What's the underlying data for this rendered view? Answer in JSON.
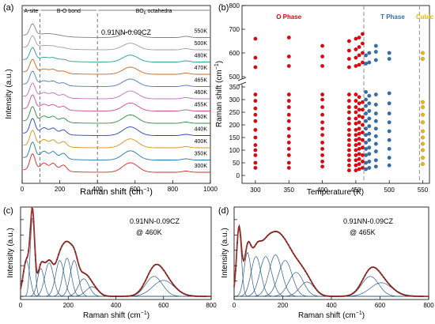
{
  "chart_data": [
    {
      "panel": "(a)",
      "type": "line",
      "xlabel": "Raman shift (cm",
      "xlabel_sup": "−1",
      "xlabel_tail": ")",
      "ylabel": "Intensity (a.u.)",
      "xlim": [
        0,
        1000
      ],
      "xticks": [
        "0",
        "200",
        "400",
        "600",
        "800",
        "1000"
      ],
      "sample": "0.91NN-0.09CZ",
      "regions": [
        {
          "label": "A-site",
          "from": 0,
          "to": 95
        },
        {
          "label": "B-O bond",
          "from": 95,
          "to": 400
        },
        {
          "label": "BO",
          "sub": "6",
          "tail": " octahedra",
          "from": 400,
          "to": 1000
        }
      ],
      "divider_x": [
        95,
        400
      ],
      "series": [
        {
          "name": "550K",
          "color": "#7f7f7f"
        },
        {
          "name": "500K",
          "color": "#9e9e9e"
        },
        {
          "name": "480K",
          "color": "#2a9d8f"
        },
        {
          "name": "470K",
          "color": "#c9661a"
        },
        {
          "name": "465K",
          "color": "#4a7dc0"
        },
        {
          "name": "460K",
          "color": "#bf6fc0"
        },
        {
          "name": "455K",
          "color": "#d44a8c"
        },
        {
          "name": "450K",
          "color": "#2f8f3a"
        },
        {
          "name": "440K",
          "color": "#2244bb"
        },
        {
          "name": "400K",
          "color": "#d6921c"
        },
        {
          "name": "350K",
          "color": "#1f77b4"
        },
        {
          "name": "300K",
          "color": "#d62728"
        }
      ]
    },
    {
      "panel": "(b)",
      "type": "scatter",
      "xlabel": "Temperature (K)",
      "ylabel": "Raman shift (cm",
      "ylabel_sup": "−1",
      "ylabel_tail": ")",
      "xlim": [
        280,
        560
      ],
      "xticks": [
        300,
        350,
        400,
        450,
        500,
        550
      ],
      "yticks_low": [
        0,
        50,
        100,
        150,
        200,
        250,
        300,
        350
      ],
      "yticks_high": [
        500,
        600,
        700,
        800
      ],
      "axis_break": true,
      "phase_boundaries": [
        462,
        545
      ],
      "phases": [
        {
          "label": "O Phase",
          "color": "#e8000b",
          "x": 350
        },
        {
          "label": "T Phase",
          "color": "#2f6fb0",
          "x": 505
        },
        {
          "label": "Cubic",
          "color": "#f2b600",
          "x": 553
        }
      ],
      "series": [
        {
          "name": "O",
          "color": "#e8000b",
          "points": [
            [
              300,
              30
            ],
            [
              300,
              50
            ],
            [
              300,
              80
            ],
            [
              300,
              100
            ],
            [
              300,
              120
            ],
            [
              300,
              150
            ],
            [
              300,
              180
            ],
            [
              300,
              215
            ],
            [
              300,
              240
            ],
            [
              300,
              265
            ],
            [
              300,
              295
            ],
            [
              300,
              320
            ],
            [
              300,
              540
            ],
            [
              300,
              580
            ],
            [
              300,
              660
            ],
            [
              350,
              30
            ],
            [
              350,
              50
            ],
            [
              350,
              80
            ],
            [
              350,
              105
            ],
            [
              350,
              130
            ],
            [
              350,
              155
            ],
            [
              350,
              185
            ],
            [
              350,
              215
            ],
            [
              350,
              240
            ],
            [
              350,
              270
            ],
            [
              350,
              295
            ],
            [
              350,
              320
            ],
            [
              350,
              545
            ],
            [
              350,
              585
            ],
            [
              350,
              665
            ],
            [
              400,
              35
            ],
            [
              400,
              55
            ],
            [
              400,
              80
            ],
            [
              400,
              105
            ],
            [
              400,
              130
            ],
            [
              400,
              160
            ],
            [
              400,
              185
            ],
            [
              400,
              210
            ],
            [
              400,
              240
            ],
            [
              400,
              270
            ],
            [
              400,
              300
            ],
            [
              400,
              320
            ],
            [
              400,
              545
            ],
            [
              400,
              585
            ],
            [
              400,
              630
            ],
            [
              440,
              20
            ],
            [
              440,
              40
            ],
            [
              440,
              60
            ],
            [
              440,
              80
            ],
            [
              440,
              100
            ],
            [
              440,
              120
            ],
            [
              440,
              140
            ],
            [
              440,
              160
            ],
            [
              440,
              180
            ],
            [
              440,
              205
            ],
            [
              440,
              225
            ],
            [
              440,
              250
            ],
            [
              440,
              270
            ],
            [
              440,
              295
            ],
            [
              440,
              320
            ],
            [
              440,
              540
            ],
            [
              440,
              575
            ],
            [
              440,
              610
            ],
            [
              440,
              650
            ],
            [
              450,
              20
            ],
            [
              450,
              40
            ],
            [
              450,
              60
            ],
            [
              450,
              80
            ],
            [
              450,
              100
            ],
            [
              450,
              120
            ],
            [
              450,
              140
            ],
            [
              450,
              160
            ],
            [
              450,
              180
            ],
            [
              450,
              205
            ],
            [
              450,
              225
            ],
            [
              450,
              250
            ],
            [
              450,
              270
            ],
            [
              450,
              295
            ],
            [
              450,
              320
            ],
            [
              450,
              545
            ],
            [
              450,
              580
            ],
            [
              450,
              615
            ],
            [
              450,
              660
            ],
            [
              455,
              25
            ],
            [
              455,
              45
            ],
            [
              455,
              65
            ],
            [
              455,
              85
            ],
            [
              455,
              105
            ],
            [
              455,
              125
            ],
            [
              455,
              145
            ],
            [
              455,
              165
            ],
            [
              455,
              185
            ],
            [
              455,
              210
            ],
            [
              455,
              235
            ],
            [
              455,
              260
            ],
            [
              455,
              285
            ],
            [
              455,
              310
            ],
            [
              455,
              550
            ],
            [
              455,
              590
            ],
            [
              455,
              625
            ],
            [
              455,
              665
            ],
            [
              460,
              30
            ],
            [
              460,
              55
            ],
            [
              460,
              80
            ],
            [
              460,
              110
            ],
            [
              460,
              140
            ],
            [
              460,
              170
            ],
            [
              460,
              200
            ],
            [
              460,
              230
            ],
            [
              460,
              260
            ],
            [
              460,
              290
            ],
            [
              460,
              560
            ],
            [
              460,
              600
            ],
            [
              460,
              640
            ],
            [
              460,
              680
            ]
          ]
        },
        {
          "name": "T",
          "color": "#2f6fb0",
          "points": [
            [
              465,
              25
            ],
            [
              465,
              50
            ],
            [
              465,
              80
            ],
            [
              465,
              105
            ],
            [
              465,
              130
            ],
            [
              465,
              160
            ],
            [
              465,
              185
            ],
            [
              465,
              215
            ],
            [
              465,
              245
            ],
            [
              465,
              275
            ],
            [
              465,
              300
            ],
            [
              465,
              330
            ],
            [
              465,
              555
            ],
            [
              465,
              590
            ],
            [
              470,
              30
            ],
            [
              470,
              55
            ],
            [
              470,
              85
            ],
            [
              470,
              110
            ],
            [
              470,
              140
            ],
            [
              470,
              165
            ],
            [
              470,
              195
            ],
            [
              470,
              225
            ],
            [
              470,
              255
            ],
            [
              470,
              285
            ],
            [
              470,
              315
            ],
            [
              470,
              560
            ],
            [
              470,
              600
            ],
            [
              480,
              35
            ],
            [
              480,
              60
            ],
            [
              480,
              95
            ],
            [
              480,
              125
            ],
            [
              480,
              155
            ],
            [
              480,
              185
            ],
            [
              480,
              215
            ],
            [
              480,
              245
            ],
            [
              480,
              280
            ],
            [
              480,
              320
            ],
            [
              480,
              570
            ],
            [
              480,
              605
            ],
            [
              480,
              630
            ],
            [
              500,
              40
            ],
            [
              500,
              70
            ],
            [
              500,
              105
            ],
            [
              500,
              140
            ],
            [
              500,
              175
            ],
            [
              500,
              210
            ],
            [
              500,
              245
            ],
            [
              500,
              285
            ],
            [
              500,
              325
            ],
            [
              500,
              575
            ],
            [
              500,
              600
            ]
          ]
        },
        {
          "name": "Cubic",
          "color": "#f2b600",
          "points": [
            [
              550,
              45
            ],
            [
              550,
              70
            ],
            [
              550,
              100
            ],
            [
              550,
              125
            ],
            [
              550,
              150
            ],
            [
              550,
              175
            ],
            [
              550,
              210
            ],
            [
              550,
              240
            ],
            [
              550,
              270
            ],
            [
              550,
              290
            ],
            [
              550,
              575
            ],
            [
              550,
              600
            ]
          ]
        }
      ]
    },
    {
      "panel": "(c)",
      "type": "line",
      "xlabel": "Raman shift (cm",
      "xlabel_sup": "−1",
      "xlabel_tail": ")",
      "ylabel": "Intensity (a.u.)",
      "xlim": [
        0,
        800
      ],
      "xticks": [
        "0",
        "200",
        "400",
        "600",
        "800"
      ],
      "sample": "0.91NN-0.09CZ",
      "temperature": "@ 460K",
      "data_color": "#a0302a",
      "fit_color": "#2b5d8c",
      "peaks": [
        [
          25,
          0.45,
          14
        ],
        [
          50,
          1.0,
          9
        ],
        [
          85,
          0.35,
          14
        ],
        [
          120,
          0.42,
          18
        ],
        [
          165,
          0.45,
          18
        ],
        [
          195,
          0.48,
          17
        ],
        [
          225,
          0.45,
          17
        ],
        [
          265,
          0.22,
          22
        ],
        [
          300,
          0.12,
          25
        ],
        [
          560,
          0.25,
          35
        ],
        [
          600,
          0.2,
          45
        ]
      ]
    },
    {
      "panel": "(d)",
      "type": "line",
      "xlabel": "Raman shift (cm",
      "xlabel_sup": "−1",
      "xlabel_tail": ")",
      "ylabel": "Intensity (a.u.)",
      "xlim": [
        0,
        800
      ],
      "xticks": [
        "0",
        "200",
        "400",
        "600",
        "800"
      ],
      "sample": "0.91NN-0.09CZ",
      "temperature": "@ 465K",
      "data_color": "#a0302a",
      "fit_color": "#2b5d8c",
      "peaks": [
        [
          20,
          0.85,
          10
        ],
        [
          55,
          0.55,
          14
        ],
        [
          90,
          0.5,
          20
        ],
        [
          130,
          0.5,
          24
        ],
        [
          170,
          0.52,
          26
        ],
        [
          210,
          0.45,
          28
        ],
        [
          255,
          0.3,
          30
        ],
        [
          300,
          0.18,
          30
        ],
        [
          560,
          0.25,
          35
        ],
        [
          605,
          0.17,
          45
        ]
      ]
    }
  ]
}
